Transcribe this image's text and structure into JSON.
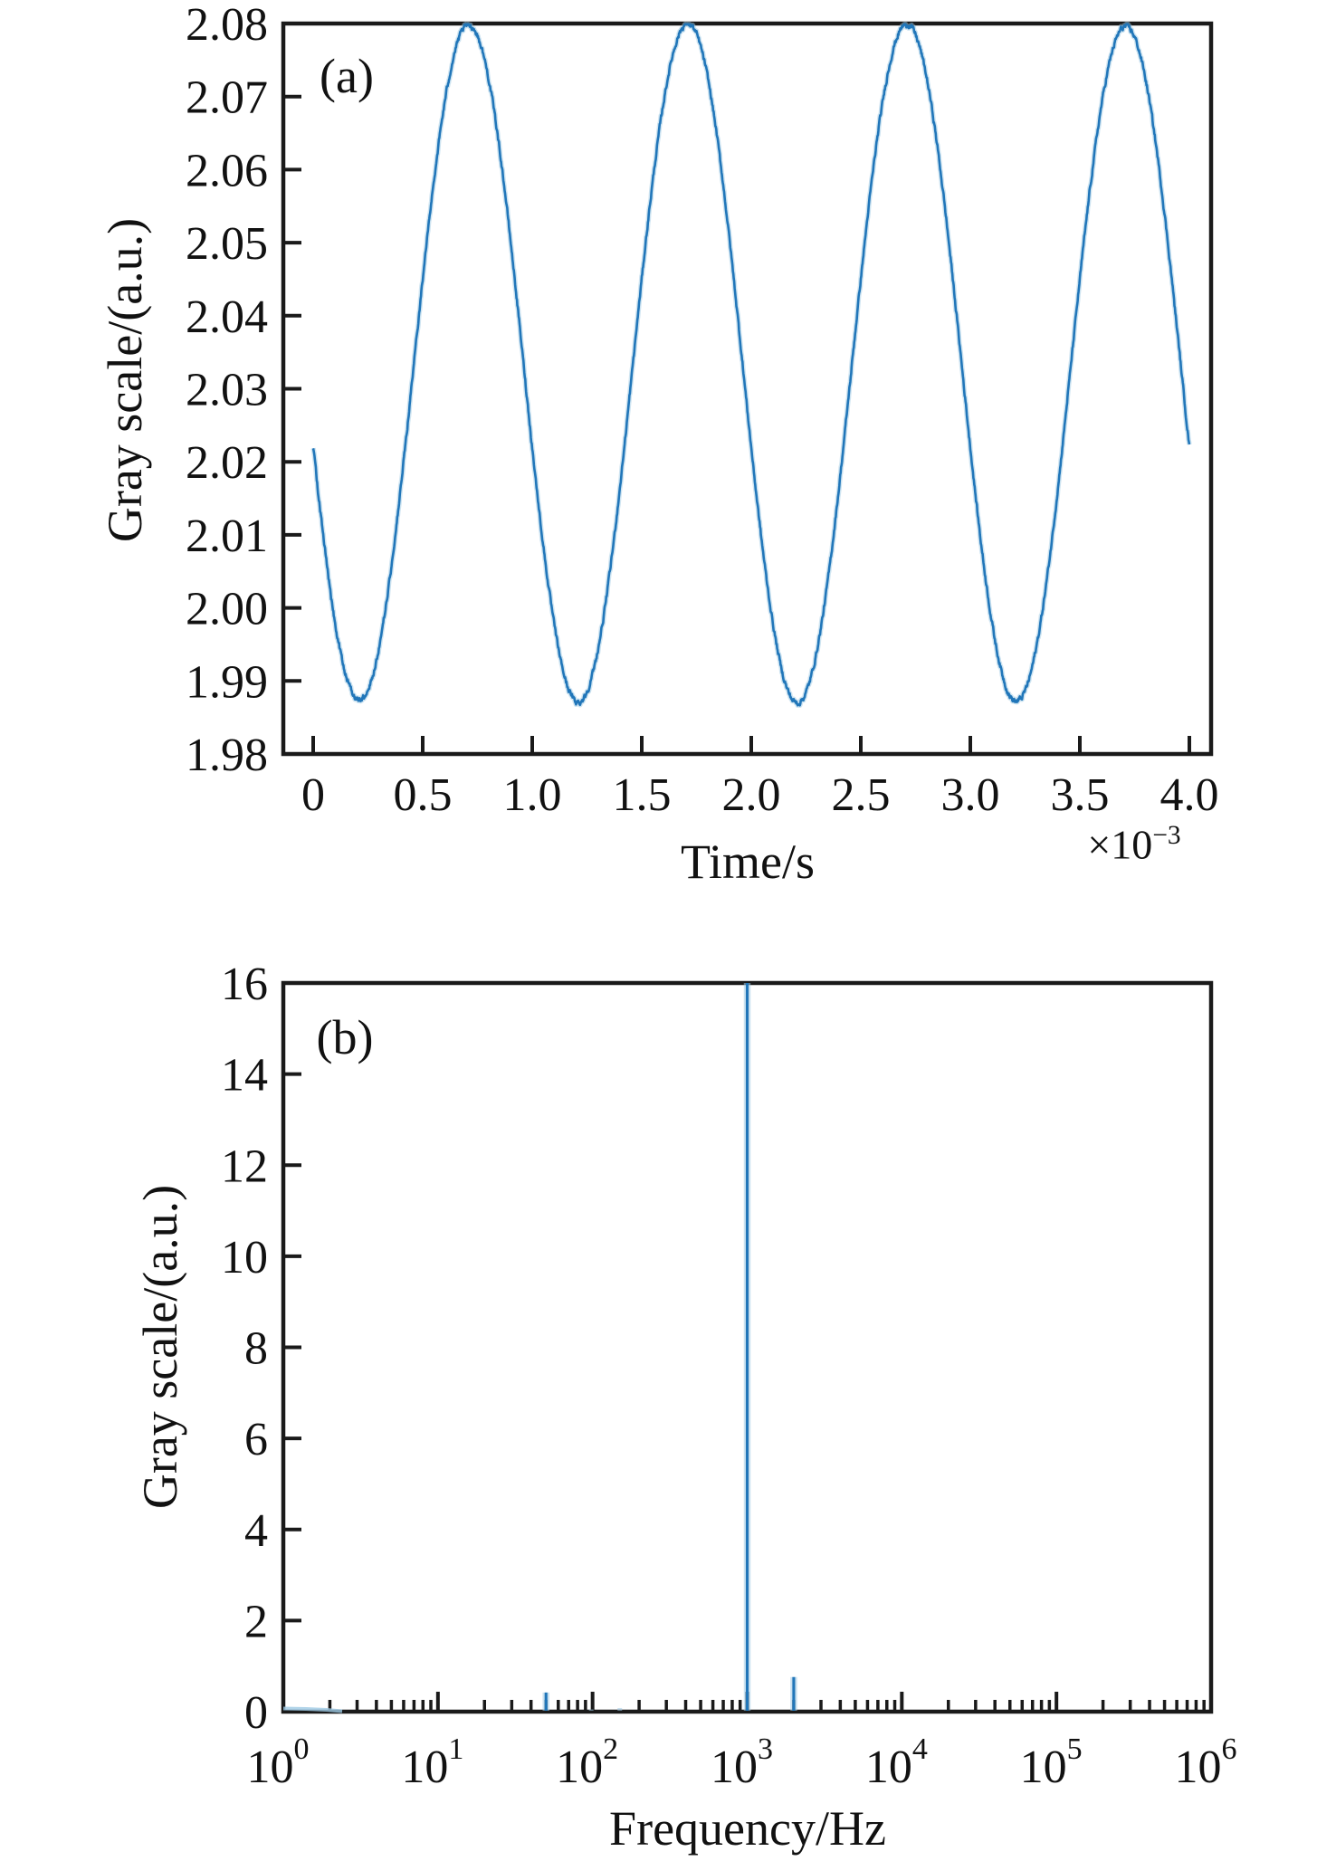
{
  "figure": {
    "background": "#ffffff",
    "axis_color": "#1a1a1a",
    "text_color": "#111111",
    "line_color": "#2176b9",
    "line_halo_color": "#9ec9e4"
  },
  "chart_data": [
    {
      "id": "a",
      "type": "line",
      "panel_label": "(a)",
      "xlabel": "Time/s",
      "ylabel": "Gray scale/(a.u.)",
      "x_multiplier_base": "×10",
      "x_multiplier_exponent": "−3",
      "x_tick_labels": [
        "0",
        "0.5",
        "1.0",
        "1.5",
        "2.0",
        "2.5",
        "3.0",
        "3.5",
        "4.0"
      ],
      "x_tick_values_ms": [
        0,
        0.5,
        1.0,
        1.5,
        2.0,
        2.5,
        3.0,
        3.5,
        4.0
      ],
      "y_tick_labels": [
        "1.98",
        "1.99",
        "2.00",
        "2.01",
        "2.02",
        "2.03",
        "2.04",
        "2.05",
        "2.06",
        "2.07",
        "2.08"
      ],
      "y_tick_values": [
        1.98,
        1.99,
        2.0,
        2.01,
        2.02,
        2.03,
        2.04,
        2.05,
        2.06,
        2.07,
        2.08
      ],
      "xlim_ms": [
        -0.136,
        4.1
      ],
      "ylim": [
        1.98,
        2.08
      ],
      "grid": false,
      "signal": {
        "description": "noisy sinusoid, grayscale oscillation",
        "offset": 2.0335,
        "amplitude": 0.046,
        "amplitude_modulation": 0.0005,
        "frequency_hz": 1000,
        "peak_time_ms": 0.71,
        "start_value": 2.02,
        "min_value": 1.987,
        "max_value": 2.08,
        "duration_ms": 4.0,
        "noise_sd": 0.0006
      }
    },
    {
      "id": "b",
      "type": "bar",
      "panel_label": "(b)",
      "xlabel": "Frequency/Hz",
      "ylabel": "Gray scale/(a.u.)",
      "x_scale": "log",
      "x_tick_base": "10",
      "x_tick_exponents": [
        "0",
        "1",
        "2",
        "3",
        "4",
        "5",
        "6"
      ],
      "y_tick_labels": [
        "0",
        "2",
        "4",
        "6",
        "8",
        "10",
        "12",
        "14",
        "16"
      ],
      "y_tick_values": [
        0,
        2,
        4,
        6,
        8,
        10,
        12,
        14,
        16
      ],
      "xlim_hz": [
        1,
        1000000
      ],
      "ylim": [
        0,
        16
      ],
      "grid": false,
      "peaks": [
        {
          "frequency_hz": 50,
          "amplitude": 0.42,
          "clipped": false
        },
        {
          "frequency_hz": 98,
          "amplitude": 0.05,
          "clipped": false
        },
        {
          "frequency_hz": 150,
          "amplitude": 0.08,
          "clipped": false
        },
        {
          "frequency_hz": 1000,
          "amplitude": 16,
          "clipped": true
        },
        {
          "frequency_hz": 2000,
          "amplitude": 0.76,
          "clipped": false
        }
      ],
      "noise_floor": [
        {
          "frequency_hz": 1.0,
          "amplitude": 0.07
        },
        {
          "frequency_hz": 1.4,
          "amplitude": 0.06
        },
        {
          "frequency_hz": 1.9,
          "amplitude": 0.04
        },
        {
          "frequency_hz": 2.4,
          "amplitude": 0.01
        }
      ]
    }
  ]
}
